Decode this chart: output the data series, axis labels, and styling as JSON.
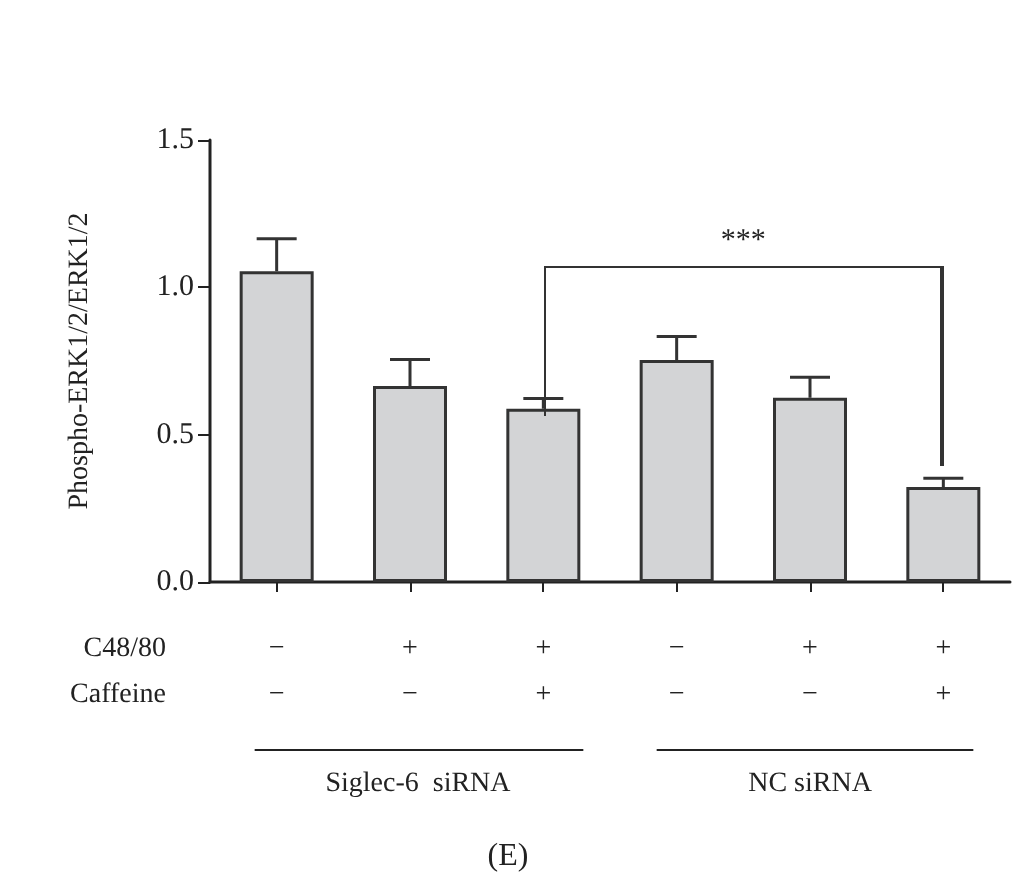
{
  "chart_data": {
    "type": "bar",
    "ylabel": "Phospho-ERK1/2/ERK1/2",
    "categories": [
      "−\n−",
      "+\n−",
      "+\n+",
      "−\n−",
      "+\n−",
      "+\n+"
    ],
    "values": [
      1.055,
      0.665,
      0.588,
      0.753,
      0.625,
      0.322
    ],
    "errors": [
      [
        1.055,
        1.165
      ],
      [
        0.665,
        0.755
      ],
      [
        0.588,
        0.623
      ],
      [
        0.753,
        0.833
      ],
      [
        0.625,
        0.695
      ],
      [
        0.322,
        0.352
      ]
    ],
    "color": "#d3d4d6",
    "ylim": [
      0,
      1.5
    ],
    "yticks": [
      {
        "value": 0,
        "label": "0.0"
      },
      {
        "value": 0.5,
        "label": "0.5"
      },
      {
        "value": 1,
        "label": "1.0"
      },
      {
        "value": 1.5,
        "label": "1.5"
      }
    ],
    "grid": false,
    "annotations": [
      "***",
      "C48/80",
      "Caffeine",
      "Siglec-6  siRNA",
      "NC siRNA",
      "(E)"
    ]
  }
}
